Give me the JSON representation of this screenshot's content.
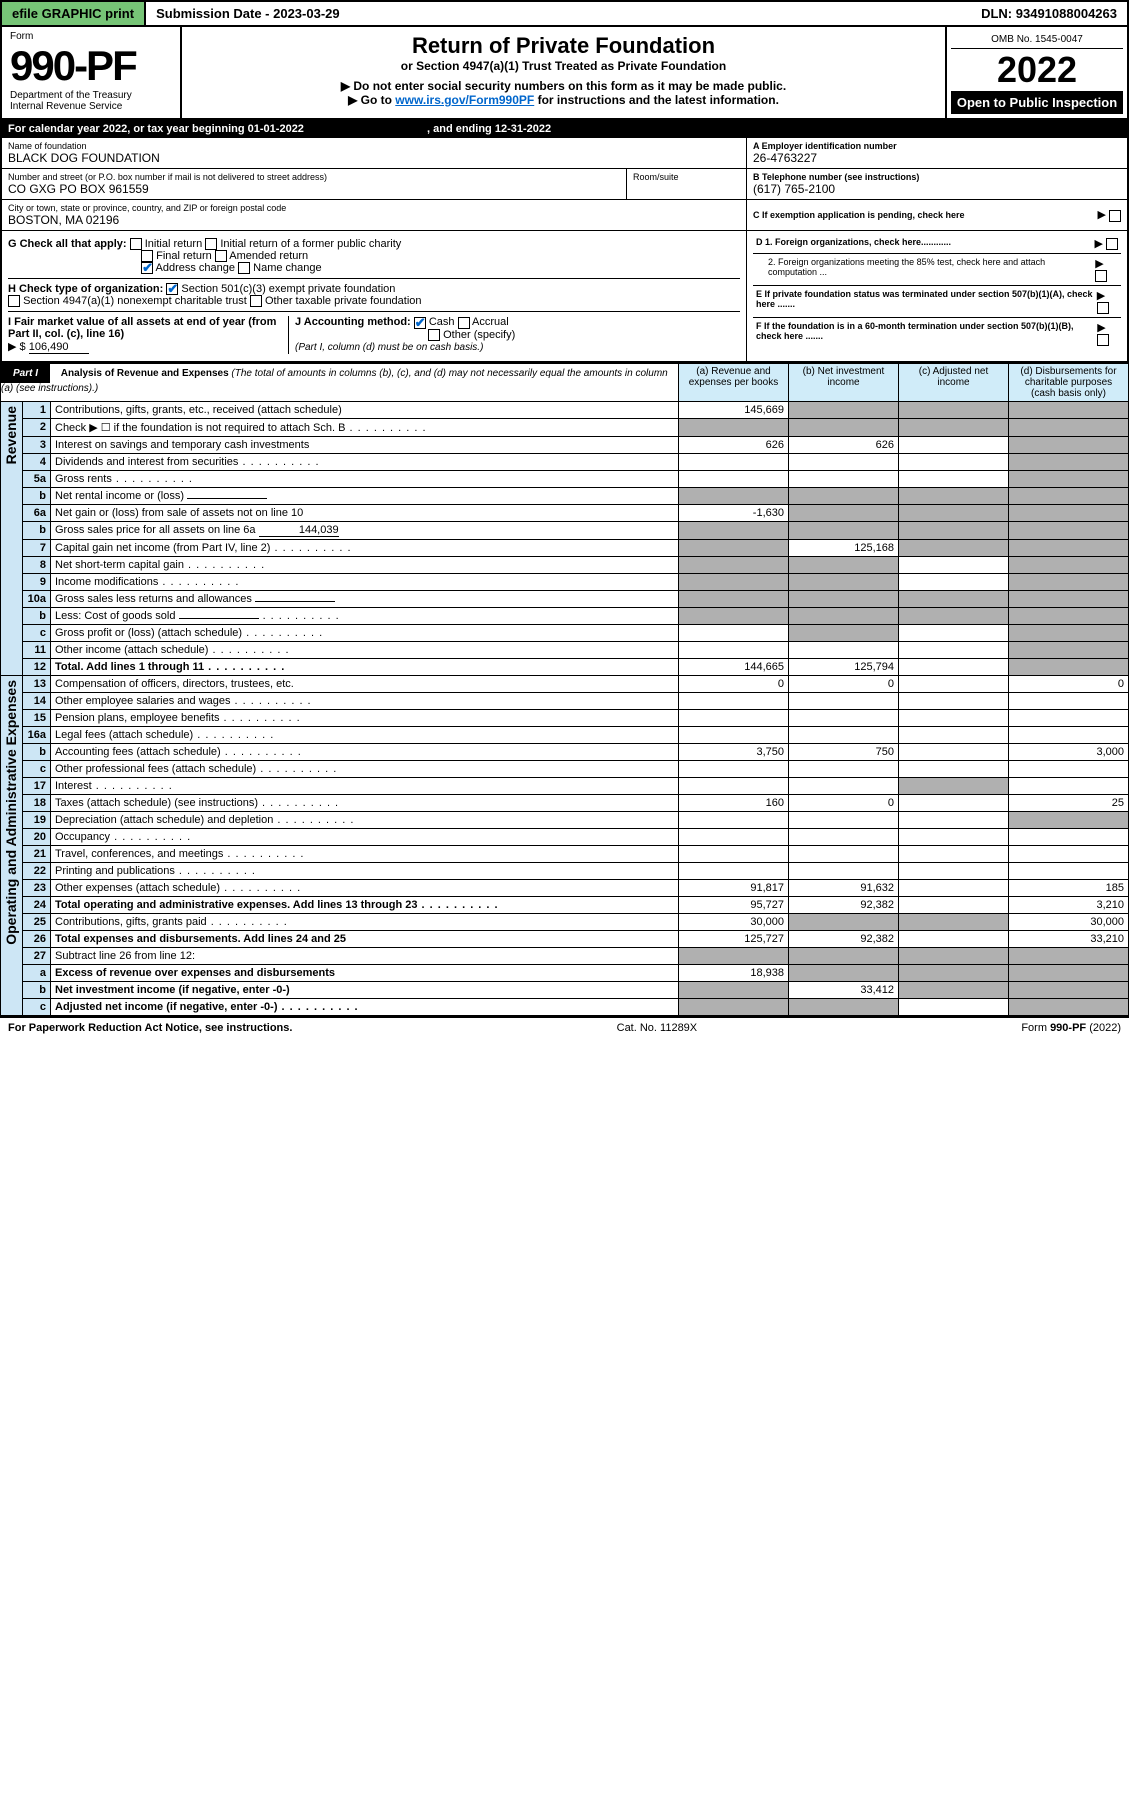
{
  "topbar": {
    "efile": "efile GRAPHIC print",
    "sub_label": "Submission Date",
    "sub_date": "2023-03-29",
    "dln_label": "DLN:",
    "dln": "93491088004263"
  },
  "header": {
    "form_label": "Form",
    "form_no": "990-PF",
    "dept": "Department of the Treasury",
    "irs": "Internal Revenue Service",
    "title": "Return of Private Foundation",
    "subtitle": "or Section 4947(a)(1) Trust Treated as Private Foundation",
    "note1": "▶ Do not enter social security numbers on this form as it may be made public.",
    "note2_pre": "▶ Go to ",
    "note2_link": "www.irs.gov/Form990PF",
    "note2_post": " for instructions and the latest information.",
    "omb_label": "OMB No. 1545-0047",
    "year": "2022",
    "open_pub": "Open to Public Inspection"
  },
  "cal": {
    "text_pre": "For calendar year 2022, or tax year beginning ",
    "begin": "01-01-2022",
    "text_mid": " , and ending ",
    "end": "12-31-2022"
  },
  "id": {
    "name_lbl": "Name of foundation",
    "name": "BLACK DOG FOUNDATION",
    "addr_lbl": "Number and street (or P.O. box number if mail is not delivered to street address)",
    "addr": "CO GXG PO BOX 961559",
    "room_lbl": "Room/suite",
    "city_lbl": "City or town, state or province, country, and ZIP or foreign postal code",
    "city": "BOSTON, MA  02196",
    "ein_lbl": "A Employer identification number",
    "ein": "26-4763227",
    "phone_lbl": "B Telephone number (see instructions)",
    "phone": "(617) 765-2100",
    "c_lbl": "C If exemption application is pending, check here"
  },
  "checks": {
    "g_lbl": "G Check all that apply:",
    "g_opts": [
      "Initial return",
      "Initial return of a former public charity",
      "Final return",
      "Amended return",
      "Address change",
      "Name change"
    ],
    "g_checked": [
      false,
      false,
      false,
      false,
      true,
      false
    ],
    "h_lbl": "H Check type of organization:",
    "h_opts": [
      "Section 501(c)(3) exempt private foundation",
      "Section 4947(a)(1) nonexempt charitable trust",
      "Other taxable private foundation"
    ],
    "h_checked": [
      true,
      false,
      false
    ],
    "i_lbl": "I Fair market value of all assets at end of year (from Part II, col. (c), line 16)",
    "i_val": "106,490",
    "j_lbl": "J Accounting method:",
    "j_opts": [
      "Cash",
      "Accrual",
      "Other (specify)"
    ],
    "j_checked": [
      true,
      false,
      false
    ],
    "j_note": "(Part I, column (d) must be on cash basis.)",
    "d1": "D 1. Foreign organizations, check here............",
    "d2": "2. Foreign organizations meeting the 85% test, check here and attach computation ...",
    "e": "E If private foundation status was terminated under section 507(b)(1)(A), check here .......",
    "f": "F If the foundation is in a 60-month termination under section 507(b)(1)(B), check here .......",
    "dollar": "$"
  },
  "part1": {
    "label": "Part I",
    "title": "Analysis of Revenue and Expenses",
    "title_note": "(The total of amounts in columns (b), (c), and (d) may not necessarily equal the amounts in column (a) (see instructions).)",
    "col_a": "(a) Revenue and expenses per books",
    "col_b": "(b) Net investment income",
    "col_c": "(c) Adjusted net income",
    "col_d": "(d) Disbursements for charitable purposes (cash basis only)"
  },
  "sidelabels": {
    "rev": "Revenue",
    "exp": "Operating and Administrative Expenses"
  },
  "rows": [
    {
      "n": "1",
      "d": "Contributions, gifts, grants, etc., received (attach schedule)",
      "a": "145,669",
      "b": "",
      "c": "",
      "dd": "",
      "b_grey": true,
      "c_grey": true,
      "d_grey": true
    },
    {
      "n": "2",
      "d": "Check ▶ ☐ if the foundation is not required to attach Sch. B",
      "a": "",
      "b": "",
      "c": "",
      "dd": "",
      "a_grey": true,
      "b_grey": true,
      "c_grey": true,
      "d_grey": true,
      "dots": true
    },
    {
      "n": "3",
      "d": "Interest on savings and temporary cash investments",
      "a": "626",
      "b": "626",
      "c": "",
      "dd": "",
      "d_grey": true
    },
    {
      "n": "4",
      "d": "Dividends and interest from securities",
      "a": "",
      "b": "",
      "c": "",
      "dd": "",
      "d_grey": true,
      "dots": true
    },
    {
      "n": "5a",
      "d": "Gross rents",
      "a": "",
      "b": "",
      "c": "",
      "dd": "",
      "d_grey": true,
      "dots": true
    },
    {
      "n": "b",
      "d": "Net rental income or (loss)",
      "a": "",
      "b": "",
      "c": "",
      "dd": "",
      "a_grey": true,
      "b_grey": true,
      "c_grey": true,
      "d_grey": true,
      "inline_box": true
    },
    {
      "n": "6a",
      "d": "Net gain or (loss) from sale of assets not on line 10",
      "a": "-1,630",
      "b": "",
      "c": "",
      "dd": "",
      "b_grey": true,
      "c_grey": true,
      "d_grey": true
    },
    {
      "n": "b",
      "d": "Gross sales price for all assets on line 6a",
      "a": "",
      "b": "",
      "c": "",
      "dd": "",
      "a_grey": true,
      "b_grey": true,
      "c_grey": true,
      "d_grey": true,
      "inline_val": "144,039"
    },
    {
      "n": "7",
      "d": "Capital gain net income (from Part IV, line 2)",
      "a": "",
      "b": "125,168",
      "c": "",
      "dd": "",
      "a_grey": true,
      "c_grey": true,
      "d_grey": true,
      "dots": true
    },
    {
      "n": "8",
      "d": "Net short-term capital gain",
      "a": "",
      "b": "",
      "c": "",
      "dd": "",
      "a_grey": true,
      "b_grey": true,
      "d_grey": true,
      "dots": true
    },
    {
      "n": "9",
      "d": "Income modifications",
      "a": "",
      "b": "",
      "c": "",
      "dd": "",
      "a_grey": true,
      "b_grey": true,
      "d_grey": true,
      "dots": true
    },
    {
      "n": "10a",
      "d": "Gross sales less returns and allowances",
      "a": "",
      "b": "",
      "c": "",
      "dd": "",
      "a_grey": true,
      "b_grey": true,
      "c_grey": true,
      "d_grey": true,
      "inline_box": true
    },
    {
      "n": "b",
      "d": "Less: Cost of goods sold",
      "a": "",
      "b": "",
      "c": "",
      "dd": "",
      "a_grey": true,
      "b_grey": true,
      "c_grey": true,
      "d_grey": true,
      "inline_box": true,
      "dots": true
    },
    {
      "n": "c",
      "d": "Gross profit or (loss) (attach schedule)",
      "a": "",
      "b": "",
      "c": "",
      "dd": "",
      "b_grey": true,
      "d_grey": true,
      "dots": true
    },
    {
      "n": "11",
      "d": "Other income (attach schedule)",
      "a": "",
      "b": "",
      "c": "",
      "dd": "",
      "d_grey": true,
      "dots": true
    },
    {
      "n": "12",
      "d": "Total. Add lines 1 through 11",
      "a": "144,665",
      "b": "125,794",
      "c": "",
      "dd": "",
      "bold": true,
      "d_grey": true,
      "dots": true
    },
    {
      "n": "13",
      "d": "Compensation of officers, directors, trustees, etc.",
      "a": "0",
      "b": "0",
      "c": "",
      "dd": "0"
    },
    {
      "n": "14",
      "d": "Other employee salaries and wages",
      "a": "",
      "b": "",
      "c": "",
      "dd": "",
      "dots": true
    },
    {
      "n": "15",
      "d": "Pension plans, employee benefits",
      "a": "",
      "b": "",
      "c": "",
      "dd": "",
      "dots": true
    },
    {
      "n": "16a",
      "d": "Legal fees (attach schedule)",
      "a": "",
      "b": "",
      "c": "",
      "dd": "",
      "dots": true
    },
    {
      "n": "b",
      "d": "Accounting fees (attach schedule)",
      "a": "3,750",
      "b": "750",
      "c": "",
      "dd": "3,000",
      "dots": true
    },
    {
      "n": "c",
      "d": "Other professional fees (attach schedule)",
      "a": "",
      "b": "",
      "c": "",
      "dd": "",
      "dots": true
    },
    {
      "n": "17",
      "d": "Interest",
      "a": "",
      "b": "",
      "c": "",
      "dd": "",
      "c_grey": true,
      "dots": true
    },
    {
      "n": "18",
      "d": "Taxes (attach schedule) (see instructions)",
      "a": "160",
      "b": "0",
      "c": "",
      "dd": "25",
      "dots": true
    },
    {
      "n": "19",
      "d": "Depreciation (attach schedule) and depletion",
      "a": "",
      "b": "",
      "c": "",
      "dd": "",
      "d_grey": true,
      "dots": true
    },
    {
      "n": "20",
      "d": "Occupancy",
      "a": "",
      "b": "",
      "c": "",
      "dd": "",
      "dots": true
    },
    {
      "n": "21",
      "d": "Travel, conferences, and meetings",
      "a": "",
      "b": "",
      "c": "",
      "dd": "",
      "dots": true
    },
    {
      "n": "22",
      "d": "Printing and publications",
      "a": "",
      "b": "",
      "c": "",
      "dd": "",
      "dots": true
    },
    {
      "n": "23",
      "d": "Other expenses (attach schedule)",
      "a": "91,817",
      "b": "91,632",
      "c": "",
      "dd": "185",
      "dots": true
    },
    {
      "n": "24",
      "d": "Total operating and administrative expenses. Add lines 13 through 23",
      "a": "95,727",
      "b": "92,382",
      "c": "",
      "dd": "3,210",
      "bold": true,
      "dots": true
    },
    {
      "n": "25",
      "d": "Contributions, gifts, grants paid",
      "a": "30,000",
      "b": "",
      "c": "",
      "dd": "30,000",
      "b_grey": true,
      "c_grey": true,
      "dots": true
    },
    {
      "n": "26",
      "d": "Total expenses and disbursements. Add lines 24 and 25",
      "a": "125,727",
      "b": "92,382",
      "c": "",
      "dd": "33,210",
      "bold": true
    },
    {
      "n": "27",
      "d": "Subtract line 26 from line 12:",
      "a": "",
      "b": "",
      "c": "",
      "dd": "",
      "a_grey": true,
      "b_grey": true,
      "c_grey": true,
      "d_grey": true
    },
    {
      "n": "a",
      "d": "Excess of revenue over expenses and disbursements",
      "a": "18,938",
      "b": "",
      "c": "",
      "dd": "",
      "bold": true,
      "b_grey": true,
      "c_grey": true,
      "d_grey": true
    },
    {
      "n": "b",
      "d": "Net investment income (if negative, enter -0-)",
      "a": "",
      "b": "33,412",
      "c": "",
      "dd": "",
      "bold": true,
      "a_grey": true,
      "c_grey": true,
      "d_grey": true
    },
    {
      "n": "c",
      "d": "Adjusted net income (if negative, enter -0-)",
      "a": "",
      "b": "",
      "c": "",
      "dd": "",
      "bold": true,
      "a_grey": true,
      "b_grey": true,
      "d_grey": true,
      "dots": true
    }
  ],
  "footer": {
    "left": "For Paperwork Reduction Act Notice, see instructions.",
    "mid": "Cat. No. 11289X",
    "right": "Form 990-PF (2022)"
  }
}
